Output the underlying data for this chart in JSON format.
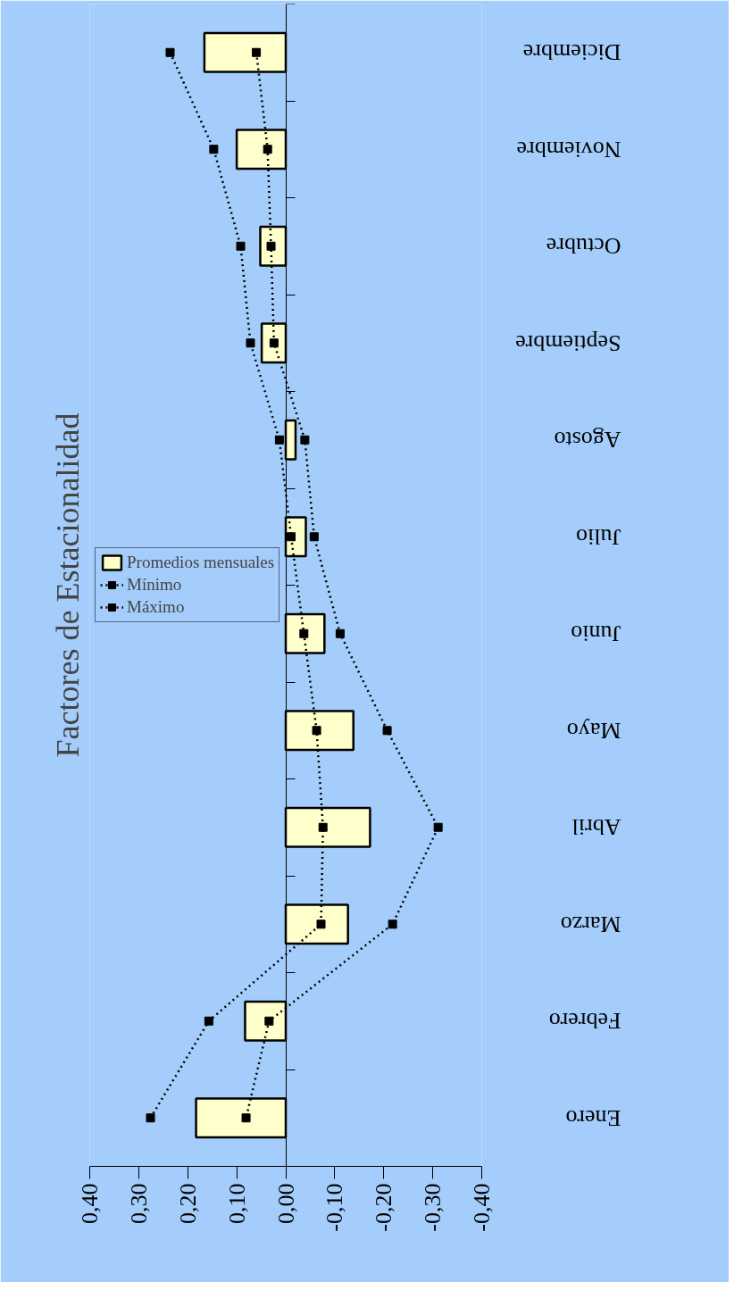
{
  "chart_data": {
    "type": "bar",
    "title": "Factores de Estacionalidad",
    "orientation": "horizontal",
    "categories": [
      "Diciembre",
      "Noviembre",
      "Octubre",
      "Septiembre",
      "Agosto",
      "Julio",
      "Junio",
      "Mayo",
      "Abril",
      "Marzo",
      "Febrero",
      "Enero"
    ],
    "series": [
      {
        "name": "Promedios mensuales",
        "color": "#ffffcc",
        "values": [
          0.166,
          0.1,
          0.052,
          0.049,
          -0.02,
          -0.041,
          -0.079,
          -0.138,
          -0.172,
          -0.127,
          0.083,
          0.183
        ]
      },
      {
        "name": "Mínimo",
        "type": "line",
        "color": "#000000",
        "values": [
          0.06,
          0.037,
          0.03,
          0.024,
          -0.039,
          -0.058,
          -0.111,
          -0.207,
          -0.311,
          -0.218,
          0.034,
          0.081
        ]
      },
      {
        "name": "Máximo",
        "type": "line",
        "color": "#000000",
        "values": [
          0.236,
          0.147,
          0.092,
          0.072,
          0.013,
          -0.011,
          -0.037,
          -0.063,
          -0.076,
          -0.072,
          0.157,
          0.276
        ]
      }
    ],
    "xlim": [
      0.4,
      -0.4
    ],
    "xticks": [
      {
        "value": 0.4,
        "label": "0,40"
      },
      {
        "value": 0.3,
        "label": "0,30"
      },
      {
        "value": 0.2,
        "label": "0,20"
      },
      {
        "value": 0.1,
        "label": "0,10"
      },
      {
        "value": 0,
        "label": "0,00"
      },
      {
        "value": -0.1,
        "label": "-0,10"
      },
      {
        "value": -0.2,
        "label": "-0,20"
      },
      {
        "value": -0.3,
        "label": "-0,30"
      },
      {
        "value": -0.4,
        "label": "-0,40"
      }
    ],
    "legend": "left",
    "marker": "square",
    "line_style": "dotted"
  }
}
